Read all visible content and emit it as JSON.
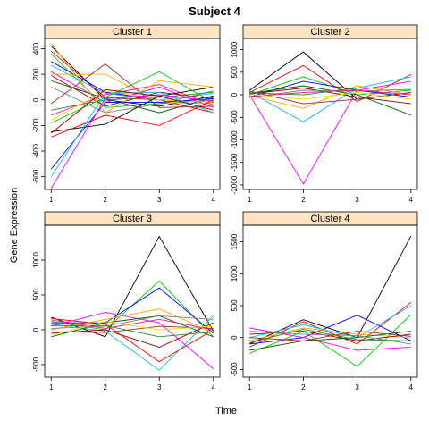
{
  "chart_data": {
    "type": "line",
    "title": "Subject 4",
    "xlabel": "Time",
    "ylabel": "Gene Expression",
    "x": [
      1,
      2,
      3,
      4
    ],
    "strip_color": "#ffe4c4",
    "series_colors": [
      "#000000",
      "#ff0000",
      "#00cd00",
      "#0000ff",
      "#00bfff",
      "#ff00ff",
      "#ffa500",
      "#8b0000",
      "#006400",
      "#808080",
      "#a52a2a",
      "#228b22",
      "#ff1493",
      "#ffd700"
    ],
    "panels": [
      {
        "name": "Cluster 1",
        "ylim": [
          -700,
          480
        ],
        "yticks": [
          -600,
          -400,
          -200,
          0,
          200,
          400
        ],
        "series": [
          {
            "values": [
              420,
              0,
              -50,
              30
            ]
          },
          {
            "values": [
              380,
              20,
              0,
              -100
            ]
          },
          {
            "values": [
              360,
              -60,
              -30,
              0
            ]
          },
          {
            "values": [
              300,
              60,
              0,
              -20
            ]
          },
          {
            "values": [
              270,
              50,
              0,
              50
            ]
          },
          {
            "values": [
              220,
              -20,
              100,
              -60
            ]
          },
          {
            "values": [
              200,
              200,
              -20,
              -30
            ]
          },
          {
            "values": [
              190,
              -50,
              60,
              10
            ]
          },
          {
            "values": [
              150,
              10,
              -100,
              20
            ]
          },
          {
            "values": [
              100,
              -100,
              -30,
              70
            ]
          },
          {
            "values": [
              -30,
              280,
              -60,
              -50
            ]
          },
          {
            "values": [
              -80,
              0,
              20,
              60
            ]
          },
          {
            "values": [
              -120,
              40,
              120,
              -40
            ]
          },
          {
            "values": [
              -160,
              70,
              0,
              -20
            ]
          },
          {
            "values": [
              -250,
              -190,
              30,
              100
            ]
          },
          {
            "values": [
              -290,
              -120,
              -200,
              0
            ]
          },
          {
            "values": [
              -180,
              20,
              220,
              -20
            ]
          },
          {
            "values": [
              -540,
              -20,
              -20,
              10
            ]
          },
          {
            "values": [
              -600,
              50,
              60,
              -100
            ]
          },
          {
            "values": [
              -690,
              10,
              40,
              -10
            ]
          },
          {
            "values": [
              440,
              -100,
              150,
              100
            ]
          },
          {
            "values": [
              -260,
              80,
              30,
              -80
            ]
          }
        ]
      },
      {
        "name": "Cluster 2",
        "ylim": [
          -2100,
          1250
        ],
        "yticks": [
          -2000,
          -1500,
          -1000,
          -500,
          0,
          500,
          1000
        ],
        "series": [
          {
            "values": [
              100,
              950,
              -100,
              50
            ]
          },
          {
            "values": [
              50,
              650,
              -150,
              450
            ]
          },
          {
            "values": [
              0,
              400,
              0,
              100
            ]
          },
          {
            "values": [
              -50,
              300,
              100,
              -50
            ]
          },
          {
            "values": [
              60,
              -600,
              150,
              400
            ]
          },
          {
            "values": [
              0,
              -1980,
              100,
              300
            ]
          },
          {
            "values": [
              -20,
              -300,
              200,
              0
            ]
          },
          {
            "values": [
              20,
              150,
              -50,
              -200
            ]
          },
          {
            "values": [
              30,
              200,
              0,
              -450
            ]
          },
          {
            "values": [
              -60,
              100,
              80,
              120
            ]
          },
          {
            "values": [
              80,
              -200,
              -100,
              50
            ]
          },
          {
            "values": [
              40,
              0,
              150,
              150
            ]
          },
          {
            "values": [
              -40,
              50,
              100,
              0
            ]
          },
          {
            "values": [
              10,
              -100,
              50,
              -100
            ]
          }
        ]
      },
      {
        "name": "Cluster 3",
        "ylim": [
          -680,
          1500
        ],
        "yticks": [
          -500,
          0,
          500,
          1000
        ],
        "series": [
          {
            "values": [
              180,
              -100,
              1340,
              -20
            ]
          },
          {
            "values": [
              160,
              80,
              -460,
              0
            ]
          },
          {
            "values": [
              120,
              0,
              700,
              -100
            ]
          },
          {
            "values": [
              100,
              100,
              600,
              -50
            ]
          },
          {
            "values": [
              80,
              -20,
              -580,
              200
            ]
          },
          {
            "values": [
              50,
              250,
              100,
              -560
            ]
          },
          {
            "values": [
              0,
              150,
              300,
              -40
            ]
          },
          {
            "values": [
              -50,
              0,
              -250,
              100
            ]
          },
          {
            "values": [
              -100,
              100,
              200,
              -100
            ]
          },
          {
            "values": [
              20,
              50,
              200,
              150
            ]
          },
          {
            "values": [
              -30,
              -40,
              50,
              20
            ]
          },
          {
            "values": [
              60,
              60,
              -100,
              -30
            ]
          },
          {
            "values": [
              140,
              20,
              150,
              0
            ]
          },
          {
            "values": [
              -80,
              120,
              0,
              50
            ]
          }
        ]
      },
      {
        "name": "Cluster 4",
        "ylim": [
          -620,
          1760
        ],
        "yticks": [
          -500,
          0,
          500,
          1000,
          1500
        ],
        "series": [
          {
            "values": [
              -100,
              280,
              0,
              1590
            ]
          },
          {
            "values": [
              -150,
              250,
              -100,
              550
            ]
          },
          {
            "values": [
              -250,
              100,
              -450,
              360
            ]
          },
          {
            "values": [
              -100,
              0,
              350,
              -50
            ]
          },
          {
            "values": [
              0,
              200,
              0,
              500
            ]
          },
          {
            "values": [
              150,
              0,
              -200,
              -150
            ]
          },
          {
            "values": [
              -50,
              150,
              50,
              0
            ]
          },
          {
            "values": [
              50,
              100,
              -50,
              50
            ]
          },
          {
            "values": [
              -200,
              -50,
              0,
              100
            ]
          },
          {
            "values": [
              100,
              50,
              30,
              -100
            ]
          },
          {
            "values": [
              0,
              -50,
              100,
              20
            ]
          },
          {
            "values": [
              -80,
              130,
              -30,
              -50
            ]
          }
        ]
      }
    ]
  }
}
